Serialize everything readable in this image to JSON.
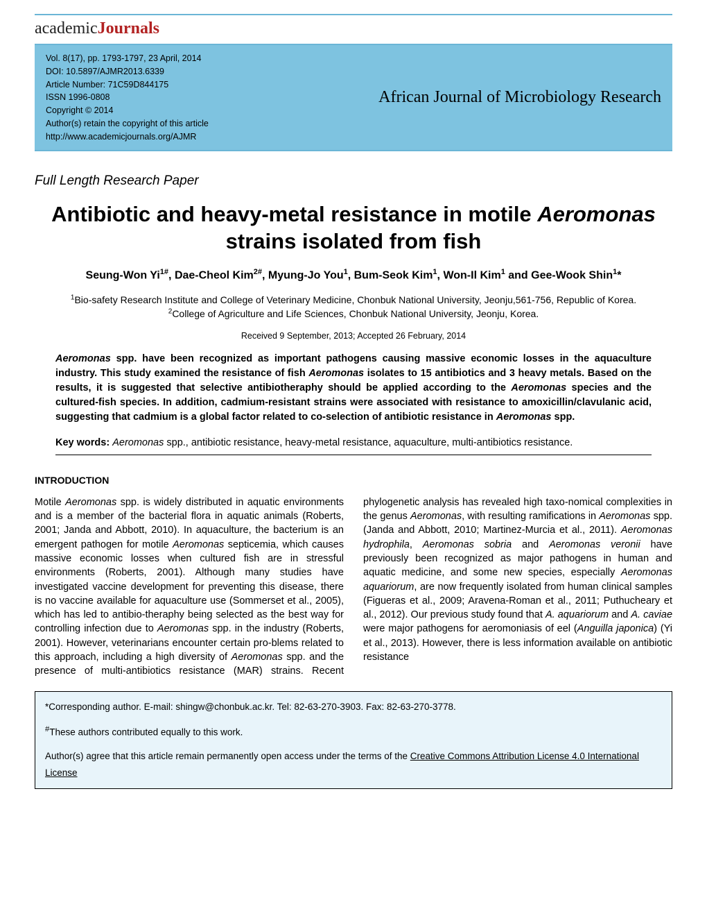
{
  "logo": {
    "part1": "academic",
    "part2": "Journals"
  },
  "meta": {
    "vol": "Vol. 8(17), pp. 1793-1797, 23 April, 2014",
    "doi": "DOI: 10.5897/AJMR2013.6339",
    "artnum": "Article Number: 71C59D844175",
    "issn": "ISSN 1996-0808",
    "copyright": "Copyright © 2014",
    "rights": "Author(s) retain the copyright of this article",
    "url": "http://www.academicjournals.org/AJMR"
  },
  "journal_name": "African Journal of Microbiology Research",
  "paper_type": "Full Length Research Paper",
  "title_before": "Antibiotic and heavy-metal resistance in motile ",
  "title_em": "Aeromonas",
  "title_after": " strains isolated from fish",
  "authors_html": "Seung-Won Yi<sup>1#</sup>, Dae-Cheol Kim<sup>2#</sup>, Myung-Jo You<sup>1</sup>, Bum-Seok Kim<sup>1</sup>, Won-Il Kim<sup>1</sup> and Gee-Wook Shin<sup>1</sup>*",
  "aff1": "Bio-safety Research Institute and College of Veterinary Medicine, Chonbuk National University, Jeonju,561-756, Republic of Korea.",
  "aff2": "College of Agriculture and Life Sciences, Chonbuk National University, Jeonju, Korea.",
  "dates": "Received 9 September, 2013; Accepted 26 February, 2014",
  "abstract_html": "<em>Aeromonas</em> spp. have been recognized as important pathogens causing massive economic losses in the aquaculture industry. This study examined the resistance of fish <em>Aeromonas</em> isolates to 15 antibiotics and 3 heavy metals. Based on the results, it is suggested that selective antibiotheraphy should be applied according to the <em>Aeromonas</em> species and the cultured-fish species. In addition, cadmium-resistant strains were associated with resistance to amoxicillin/clavulanic acid, suggesting that cadmium is a global factor related to co-selection of antibiotic resistance in <em>Aeromonas</em> spp.",
  "keywords_label": "Key words:",
  "keywords_html": " <em>Aeromonas</em> spp., antibiotic resistance, heavy-metal resistance, aquaculture, multi-antibiotics resistance.",
  "section_heading": "INTRODUCTION",
  "body_html": "Motile <em>Aeromonas</em> spp. is widely distributed in aquatic environments and is a member of the bacterial flora in aquatic animals (Roberts, 2001; Janda and Abbott, 2010). In aquaculture, the bacterium is an emergent pathogen for motile <em>Aeromonas</em> septicemia, which causes massive economic losses when cultured fish are in stressful environments (Roberts, 2001). Although many studies have investigated vaccine development for preventing this disease, there is no vaccine available for aquaculture use (Sommerset et al., 2005), which has led to antibio-theraphy being selected as the best way for controlling infection due to <em>Aeromonas</em> spp. in the industry (Roberts, 2001). However, veterinarians encounter certain pro-blems related to this approach, including a high diversity of <em>Aeromonas</em> spp. and the presence of multi-antibiotics resistance (MAR) strains. Recent phylogenetic analysis has revealed high taxo-nomical complexities in the genus <em>Aeromonas</em>, with resulting ramifications in <em>Aeromonas</em> spp. (Janda and Abbott, 2010; Martinez-Murcia et al., 2011). <em>Aeromonas hydrophila</em>, <em>Aeromonas sobria</em> and <em>Aeromonas veronii</em> have previously been recognized as major pathogens in human and aquatic medicine, and some new species, especially <em>Aeromonas aquariorum</em>, are now frequently isolated from human clinical samples (Figueras et al., 2009; Aravena-Roman et al., 2011; Puthucheary et al., 2012). Our previous study found that <em>A. aquariorum</em> and <em>A. caviae</em> were major pathogens for aeromoniasis of eel (<em>Anguilla japonica</em>) (Yi et al., 2013). However, there is less information available on antibiotic resistance",
  "footer": {
    "corr": "*Corresponding author. E-mail: shingw@chonbuk.ac.kr. Tel: 82-63-270-3903. Fax: 82-63-270-3778.",
    "equal": "#These authors contributed equally to this work.",
    "license_before": "Author(s) agree that this article remain permanently open access under the terms of the ",
    "license_link": "Creative Commons Attribution License 4.0 International License"
  }
}
